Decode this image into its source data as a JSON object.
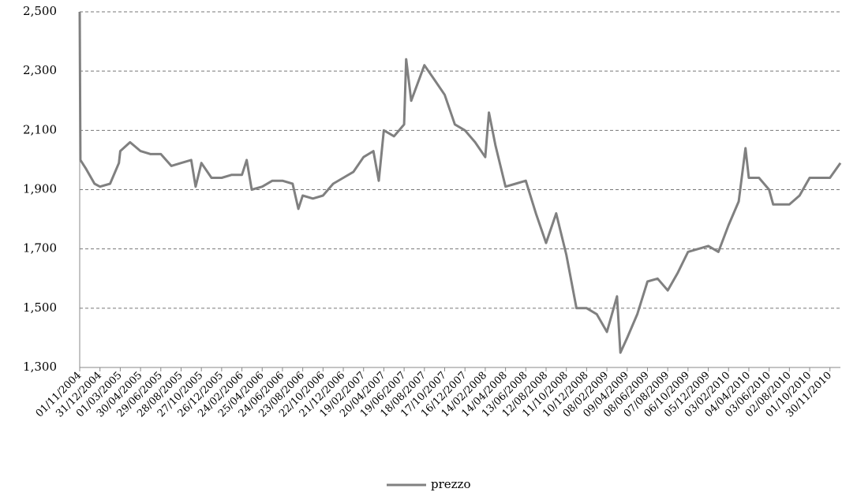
{
  "chart_data": {
    "type": "line",
    "x": [
      "01/11/2004",
      "03/11/2004",
      "20/11/2004",
      "15/12/2004",
      "31/12/2004",
      "30/01/2005",
      "25/02/2005",
      "01/03/2005",
      "30/03/2005",
      "30/04/2005",
      "30/05/2005",
      "29/06/2005",
      "30/07/2005",
      "28/08/2005",
      "27/09/2005",
      "10/10/2005",
      "27/10/2005",
      "26/11/2005",
      "26/12/2005",
      "25/01/2006",
      "24/02/2006",
      "10/03/2006",
      "25/03/2006",
      "25/04/2006",
      "25/05/2006",
      "24/06/2006",
      "24/07/2006",
      "10/08/2006",
      "23/08/2006",
      "22/09/2006",
      "22/10/2006",
      "21/11/2006",
      "21/12/2006",
      "20/01/2007",
      "19/02/2007",
      "20/03/2007",
      "05/04/2007",
      "20/04/2007",
      "20/05/2007",
      "19/06/2007",
      "25/06/2007",
      "10/07/2007",
      "18/08/2007",
      "17/09/2007",
      "17/10/2007",
      "16/11/2007",
      "16/12/2007",
      "15/01/2008",
      "14/02/2008",
      "25/02/2008",
      "15/03/2008",
      "14/04/2008",
      "14/05/2008",
      "13/06/2008",
      "13/07/2008",
      "12/08/2008",
      "11/09/2008",
      "11/10/2008",
      "10/11/2008",
      "10/12/2008",
      "09/01/2009",
      "08/02/2009",
      "10/03/2009",
      "20/03/2009",
      "09/04/2009",
      "09/05/2009",
      "08/06/2009",
      "08/07/2009",
      "07/08/2009",
      "06/09/2009",
      "06/10/2009",
      "05/11/2009",
      "05/12/2009",
      "04/01/2010",
      "03/02/2010",
      "05/03/2010",
      "25/03/2010",
      "04/04/2010",
      "04/05/2010",
      "03/06/2010",
      "15/06/2010",
      "03/07/2010",
      "02/08/2010",
      "01/09/2010",
      "01/10/2010",
      "31/10/2010",
      "30/11/2010",
      "31/12/2010"
    ],
    "series": [
      {
        "name": "prezzo",
        "color": "#808080",
        "values": [
          2500,
          2000,
          1970,
          1920,
          1910,
          1920,
          1990,
          2030,
          2060,
          2030,
          2020,
          2020,
          1980,
          1990,
          2000,
          1910,
          1990,
          1940,
          1940,
          1950,
          1950,
          2000,
          1900,
          1910,
          1930,
          1930,
          1920,
          1835,
          1880,
          1870,
          1880,
          1920,
          1940,
          1960,
          2010,
          2030,
          1930,
          2100,
          2080,
          2120,
          2340,
          2200,
          2320,
          2270,
          2220,
          2120,
          2100,
          2060,
          2010,
          2160,
          2050,
          1910,
          1920,
          1930,
          1820,
          1720,
          1820,
          1680,
          1500,
          1500,
          1480,
          1420,
          1540,
          1350,
          1400,
          1480,
          1590,
          1600,
          1560,
          1620,
          1690,
          1700,
          1710,
          1690,
          1780,
          1860,
          2040,
          1940,
          1940,
          1900,
          1850,
          1850,
          1850,
          1880,
          1940,
          1940,
          1940,
          1990
        ]
      }
    ],
    "xlim": [
      "01/11/2004",
      "31/12/2010"
    ],
    "xticks": [
      "01/11/2004",
      "31/12/2004",
      "01/03/2005",
      "30/04/2005",
      "29/06/2005",
      "28/08/2005",
      "27/10/2005",
      "26/12/2005",
      "24/02/2006",
      "25/04/2006",
      "24/06/2006",
      "23/08/2006",
      "22/10/2006",
      "21/12/2006",
      "19/02/2007",
      "20/04/2007",
      "19/06/2007",
      "18/08/2007",
      "17/10/2007",
      "16/12/2007",
      "14/02/2008",
      "14/04/2008",
      "13/06/2008",
      "12/08/2008",
      "11/10/2008",
      "10/12/2008",
      "08/02/2009",
      "09/04/2009",
      "08/06/2009",
      "07/08/2009",
      "06/10/2009",
      "05/12/2009",
      "03/02/2010",
      "04/04/2010",
      "03/06/2010",
      "02/08/2010",
      "01/10/2010",
      "30/11/2010"
    ],
    "ylim": [
      1300,
      2500
    ],
    "yticks": [
      {
        "value": 1300,
        "label": "1,300"
      },
      {
        "value": 1500,
        "label": "1,500"
      },
      {
        "value": 1700,
        "label": "1,700"
      },
      {
        "value": 1900,
        "label": "1,900"
      },
      {
        "value": 2100,
        "label": "2,100"
      },
      {
        "value": 2300,
        "label": "2,300"
      },
      {
        "value": 2500,
        "label": "2,500"
      }
    ],
    "grid": true,
    "legend": "bottom"
  }
}
